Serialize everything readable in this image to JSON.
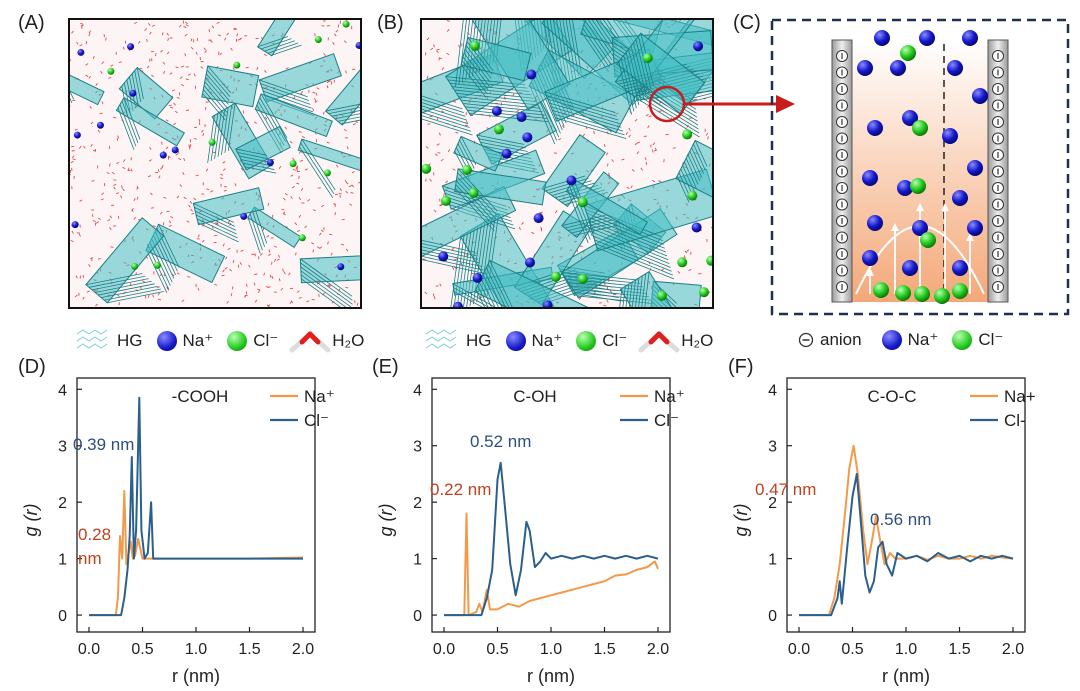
{
  "panels": {
    "A": "(A)",
    "B": "(B)",
    "C": "(C)",
    "D": "(D)",
    "E": "(E)",
    "F": "(F)"
  },
  "legend_ab": {
    "hg": "HG",
    "na": "Na⁺",
    "cl": "Cl⁻",
    "h2o": "H₂O"
  },
  "legend_c": {
    "anion": "anion",
    "na": "Na⁺",
    "cl": "Cl⁻"
  },
  "colors": {
    "na_line": "#f39a4a",
    "cl_line": "#2b5f8e",
    "na_text": "#c0431f",
    "cl_text": "#2b4f7e"
  },
  "chart_data": [
    {
      "type": "line",
      "title": "-COOH",
      "xlabel": "r (nm)",
      "ylabel": "g (r)",
      "xlim": [
        0,
        2.0
      ],
      "ylim": [
        -0.3,
        4.2
      ],
      "xticks": [
        "0.0",
        "0.5",
        "1.0",
        "1.5",
        "2.0"
      ],
      "yticks": [
        "0",
        "1",
        "2",
        "3",
        "4"
      ],
      "legend": [
        "Na⁺",
        "Cl⁻"
      ],
      "annotations": [
        "0.39 nm",
        "0.28",
        "nm"
      ],
      "series": [
        {
          "name": "Na⁺",
          "points": [
            [
              0,
              0
            ],
            [
              0.25,
              0
            ],
            [
              0.27,
              0.3
            ],
            [
              0.29,
              1.4
            ],
            [
              0.31,
              1.0
            ],
            [
              0.33,
              2.2
            ],
            [
              0.35,
              0.9
            ],
            [
              0.37,
              1.1
            ],
            [
              0.39,
              1.3
            ],
            [
              0.41,
              1.0
            ],
            [
              0.43,
              1.05
            ],
            [
              0.46,
              1.35
            ],
            [
              0.5,
              1.0
            ],
            [
              0.6,
              1.0
            ],
            [
              1.0,
              1.0
            ],
            [
              1.5,
              1.0
            ],
            [
              2.0,
              1.02
            ]
          ]
        },
        {
          "name": "Cl⁻",
          "points": [
            [
              0,
              0
            ],
            [
              0.3,
              0
            ],
            [
              0.33,
              0.3
            ],
            [
              0.36,
              0.8
            ],
            [
              0.38,
              1.4
            ],
            [
              0.4,
              2.8
            ],
            [
              0.42,
              1.0
            ],
            [
              0.44,
              1.5
            ],
            [
              0.47,
              3.85
            ],
            [
              0.49,
              1.5
            ],
            [
              0.52,
              1.0
            ],
            [
              0.55,
              1.1
            ],
            [
              0.58,
              2.0
            ],
            [
              0.6,
              1.0
            ],
            [
              1.0,
              1.0
            ],
            [
              1.5,
              1.0
            ],
            [
              2.0,
              1.0
            ]
          ]
        }
      ]
    },
    {
      "type": "line",
      "title": "C-OH",
      "xlabel": "r (nm)",
      "ylabel": "g (r)",
      "xlim": [
        0,
        2.0
      ],
      "ylim": [
        -0.3,
        4.2
      ],
      "xticks": [
        "0.0",
        "0.5",
        "1.0",
        "1.5",
        "2.0"
      ],
      "yticks": [
        "0",
        "1",
        "2",
        "3",
        "4"
      ],
      "legend": [
        "Na⁺",
        "Cl⁻"
      ],
      "annotations": [
        "0.52 nm",
        "0.22 nm"
      ],
      "series": [
        {
          "name": "Na⁺",
          "points": [
            [
              0,
              0
            ],
            [
              0.19,
              0
            ],
            [
              0.21,
              1.8
            ],
            [
              0.23,
              0
            ],
            [
              0.3,
              0.05
            ],
            [
              0.33,
              0.2
            ],
            [
              0.36,
              0.05
            ],
            [
              0.4,
              0.45
            ],
            [
              0.43,
              0.1
            ],
            [
              0.5,
              0.1
            ],
            [
              0.6,
              0.2
            ],
            [
              0.7,
              0.15
            ],
            [
              0.8,
              0.25
            ],
            [
              0.9,
              0.3
            ],
            [
              1.0,
              0.35
            ],
            [
              1.1,
              0.4
            ],
            [
              1.2,
              0.45
            ],
            [
              1.3,
              0.5
            ],
            [
              1.4,
              0.55
            ],
            [
              1.5,
              0.6
            ],
            [
              1.6,
              0.7
            ],
            [
              1.7,
              0.72
            ],
            [
              1.8,
              0.8
            ],
            [
              1.9,
              0.85
            ],
            [
              1.97,
              0.95
            ],
            [
              2.0,
              0.82
            ]
          ]
        },
        {
          "name": "Cl⁻",
          "points": [
            [
              0,
              0
            ],
            [
              0.35,
              0
            ],
            [
              0.4,
              0.3
            ],
            [
              0.45,
              0.8
            ],
            [
              0.5,
              2.4
            ],
            [
              0.53,
              2.7
            ],
            [
              0.57,
              1.9
            ],
            [
              0.62,
              0.9
            ],
            [
              0.67,
              0.35
            ],
            [
              0.72,
              0.8
            ],
            [
              0.77,
              1.65
            ],
            [
              0.8,
              1.5
            ],
            [
              0.85,
              0.85
            ],
            [
              0.9,
              0.95
            ],
            [
              0.95,
              1.1
            ],
            [
              1.0,
              1.0
            ],
            [
              1.1,
              1.05
            ],
            [
              1.2,
              1.0
            ],
            [
              1.3,
              1.05
            ],
            [
              1.4,
              1.0
            ],
            [
              1.5,
              1.05
            ],
            [
              1.6,
              1.0
            ],
            [
              1.7,
              1.05
            ],
            [
              1.8,
              1.0
            ],
            [
              1.9,
              1.05
            ],
            [
              2.0,
              1.0
            ]
          ]
        }
      ]
    },
    {
      "type": "line",
      "title": "C-O-C",
      "xlabel": "r (nm)",
      "ylabel": "g (r)",
      "xlim": [
        0,
        2.0
      ],
      "ylim": [
        -0.3,
        4.2
      ],
      "xticks": [
        "0.0",
        "0.5",
        "1.0",
        "1.5",
        "2.0"
      ],
      "yticks": [
        "0",
        "1",
        "2",
        "3",
        "4"
      ],
      "legend": [
        "Na+",
        "Cl-"
      ],
      "annotations": [
        "0.47 nm",
        "0.56 nm"
      ],
      "series": [
        {
          "name": "Na+",
          "points": [
            [
              0,
              0
            ],
            [
              0.28,
              0
            ],
            [
              0.33,
              0.3
            ],
            [
              0.38,
              0.9
            ],
            [
              0.43,
              1.8
            ],
            [
              0.47,
              2.6
            ],
            [
              0.51,
              3.0
            ],
            [
              0.55,
              2.5
            ],
            [
              0.6,
              1.5
            ],
            [
              0.64,
              0.9
            ],
            [
              0.68,
              1.3
            ],
            [
              0.72,
              1.75
            ],
            [
              0.76,
              1.3
            ],
            [
              0.8,
              0.9
            ],
            [
              0.85,
              1.1
            ],
            [
              0.9,
              1.0
            ],
            [
              1.0,
              1.0
            ],
            [
              1.1,
              1.05
            ],
            [
              1.2,
              0.98
            ],
            [
              1.3,
              1.05
            ],
            [
              1.4,
              1.0
            ],
            [
              1.5,
              1.0
            ],
            [
              1.6,
              1.05
            ],
            [
              1.7,
              1.0
            ],
            [
              1.8,
              1.05
            ],
            [
              1.9,
              1.02
            ],
            [
              2.0,
              1.0
            ]
          ]
        },
        {
          "name": "Cl-",
          "points": [
            [
              0,
              0
            ],
            [
              0.3,
              0
            ],
            [
              0.36,
              0.3
            ],
            [
              0.38,
              0.6
            ],
            [
              0.4,
              0.2
            ],
            [
              0.45,
              1.2
            ],
            [
              0.5,
              2.1
            ],
            [
              0.54,
              2.5
            ],
            [
              0.58,
              1.6
            ],
            [
              0.62,
              0.7
            ],
            [
              0.66,
              0.4
            ],
            [
              0.7,
              0.6
            ],
            [
              0.74,
              1.2
            ],
            [
              0.78,
              1.3
            ],
            [
              0.82,
              0.9
            ],
            [
              0.87,
              0.7
            ],
            [
              0.92,
              1.1
            ],
            [
              1.0,
              1.0
            ],
            [
              1.1,
              1.05
            ],
            [
              1.2,
              0.95
            ],
            [
              1.3,
              1.1
            ],
            [
              1.4,
              1.0
            ],
            [
              1.5,
              1.05
            ],
            [
              1.6,
              0.95
            ],
            [
              1.7,
              1.05
            ],
            [
              1.8,
              1.0
            ],
            [
              1.9,
              1.05
            ],
            [
              2.0,
              1.0
            ]
          ]
        }
      ]
    }
  ]
}
